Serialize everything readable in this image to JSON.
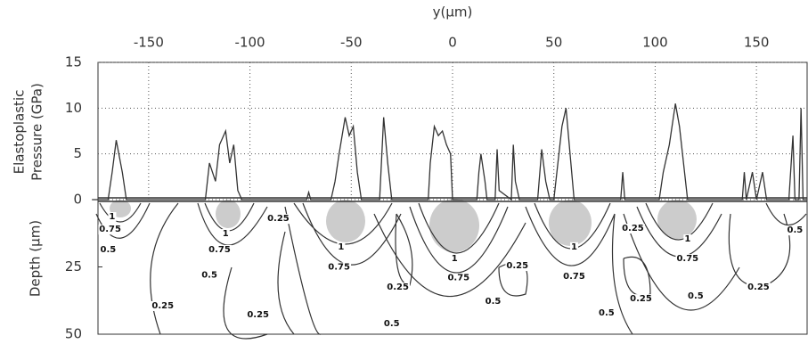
{
  "chart_data": {
    "type": "line",
    "xlabel": "y(μm)",
    "ylabel": [
      "Elastoplastic",
      "Pressure (GPa)"
    ],
    "depth_label": "Depth (μm)",
    "xlim": [
      -175,
      175
    ],
    "xticks": [
      -150,
      -100,
      -50,
      0,
      50,
      100,
      150
    ],
    "ylim": [
      0,
      15
    ],
    "yticks": [
      0,
      5,
      10,
      15
    ],
    "depth_lim": [
      0,
      50
    ],
    "depth_ticks": [
      25,
      50
    ],
    "grid": true,
    "series": [
      {
        "color": "#333333",
        "x": [
          -178,
          -170,
          -168,
          -166,
          -163,
          -161,
          -122,
          -120,
          -117,
          -115,
          -112,
          -110,
          -108,
          -106,
          -104,
          -72,
          -71,
          -70,
          -60,
          -58,
          -56,
          -53,
          -51,
          -49,
          -47,
          -45,
          -36,
          -34,
          -32,
          -30,
          -12,
          -11,
          -9,
          -7,
          -5,
          -3,
          -1,
          0,
          12,
          13,
          14,
          16,
          17,
          21,
          22,
          23,
          29,
          30,
          31,
          33,
          42,
          44,
          46,
          48,
          50,
          52,
          54,
          56,
          58,
          60,
          83,
          84,
          85,
          102,
          104,
          107,
          110,
          112,
          114,
          116,
          143,
          144,
          145,
          148,
          150,
          153,
          155,
          166,
          168,
          169,
          171,
          172,
          173,
          175
        ],
        "values": [
          0,
          0,
          3,
          6.5,
          3,
          0,
          0,
          4,
          2,
          6,
          7.5,
          4,
          6,
          1,
          0,
          0,
          0.8,
          0,
          0,
          2,
          5,
          9,
          7,
          8,
          3,
          0,
          0,
          9,
          4,
          0,
          0,
          4,
          8,
          7,
          7.5,
          6,
          5,
          0,
          0,
          3,
          5,
          2,
          0,
          0,
          5.5,
          1,
          0,
          6,
          2,
          0,
          0,
          5.5,
          2,
          0,
          0,
          4,
          8,
          10,
          5,
          0,
          0,
          3,
          0,
          0,
          3,
          6,
          10.5,
          8,
          4,
          0,
          0,
          3,
          0,
          3,
          0,
          3,
          0,
          0,
          7,
          0,
          0,
          10,
          0,
          0
        ]
      }
    ],
    "contour_labels": [
      {
        "text": "1",
        "x": -168,
        "depth": 6.3
      },
      {
        "text": "0.75",
        "x": -169,
        "depth": 11
      },
      {
        "text": "0.5",
        "x": -170,
        "depth": 18.5
      },
      {
        "text": "0.25",
        "x": -143,
        "depth": 39.4
      },
      {
        "text": "1",
        "x": -112,
        "depth": 12.6
      },
      {
        "text": "0.75",
        "x": -115,
        "depth": 18.5
      },
      {
        "text": "0.5",
        "x": -120,
        "depth": 28
      },
      {
        "text": "0.25",
        "x": -86,
        "depth": 7
      },
      {
        "text": "0.25",
        "x": -96,
        "depth": 42.7
      },
      {
        "text": "1",
        "x": -55,
        "depth": 17.5
      },
      {
        "text": "0.75",
        "x": -56,
        "depth": 25
      },
      {
        "text": "0.25",
        "x": -27,
        "depth": 32.5
      },
      {
        "text": "0.5",
        "x": -30,
        "depth": 46
      },
      {
        "text": "1",
        "x": 1,
        "depth": 21.9
      },
      {
        "text": "0.75",
        "x": 3,
        "depth": 29
      },
      {
        "text": "0.25",
        "x": 32,
        "depth": 24.5
      },
      {
        "text": "0.5",
        "x": 20,
        "depth": 37.7
      },
      {
        "text": "1",
        "x": 60,
        "depth": 17.5
      },
      {
        "text": "0.75",
        "x": 60,
        "depth": 28.5
      },
      {
        "text": "0.25",
        "x": 89,
        "depth": 10.6
      },
      {
        "text": "0.5",
        "x": 76,
        "depth": 42
      },
      {
        "text": "0.25",
        "x": 93,
        "depth": 36.8
      },
      {
        "text": "1",
        "x": 116,
        "depth": 14.6
      },
      {
        "text": "0.75",
        "x": 116,
        "depth": 21.9
      },
      {
        "text": "0.5",
        "x": 120,
        "depth": 35.8
      },
      {
        "text": "0.25",
        "x": 151,
        "depth": 32.5
      },
      {
        "text": "0.5",
        "x": 169,
        "depth": 11.3
      }
    ]
  }
}
